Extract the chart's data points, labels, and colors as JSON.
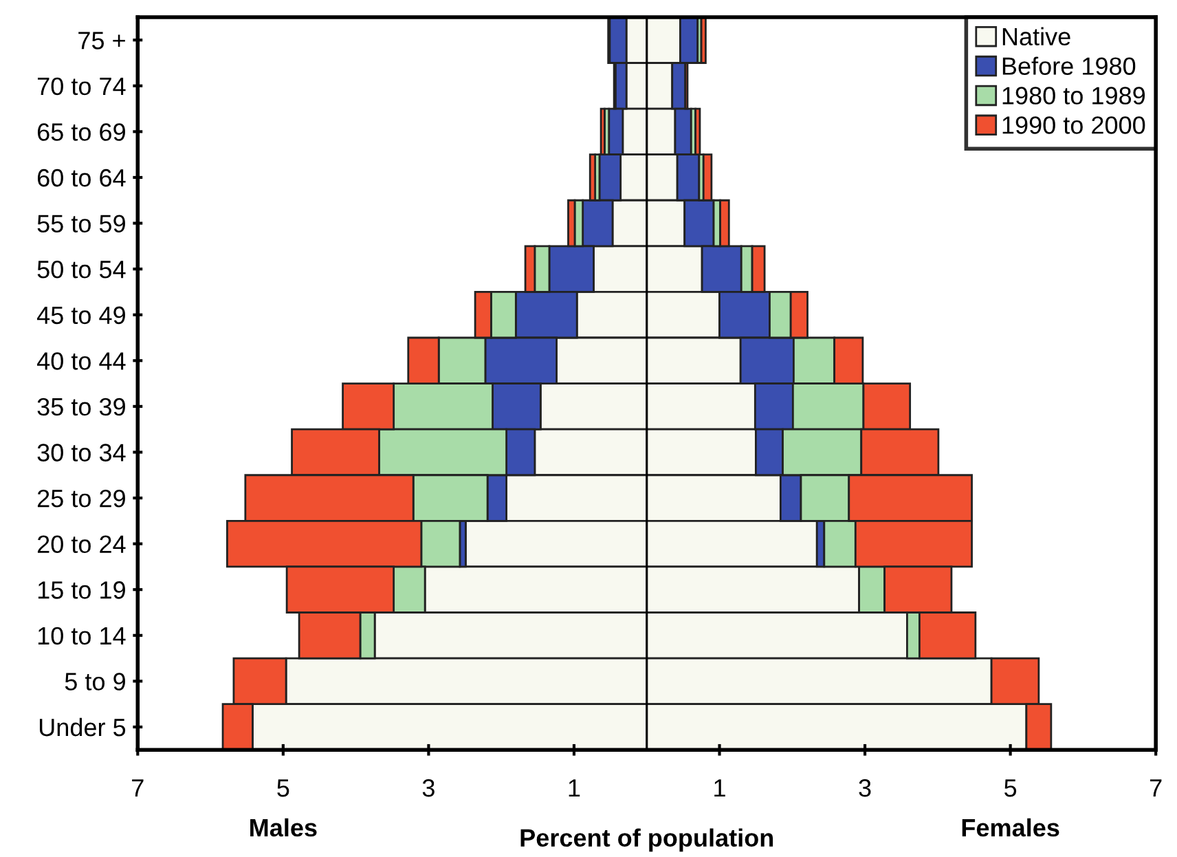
{
  "chart_data": {
    "type": "bar",
    "orientation": "horizontal",
    "stacked": true,
    "xlabel": "Percent of population",
    "annotations": [
      "Males",
      "Females"
    ],
    "categories": [
      "75 +",
      "70 to 74",
      "65 to 69",
      "60 to 64",
      "55 to 59",
      "50 to 54",
      "45 to 49",
      "40 to 44",
      "35 to 39",
      "30 to 34",
      "25 to 29",
      "20 to 24",
      "15 to 19",
      "10 to 14",
      "5 to 9",
      "Under 5"
    ],
    "series": [
      {
        "name": "Native",
        "color": "#f8f9f0",
        "values": [
          0.46,
          0.35,
          0.39,
          0.42,
          0.52,
          0.76,
          1.0,
          1.29,
          1.49,
          1.5,
          1.84,
          2.34,
          2.92,
          3.58,
          4.74,
          5.22
        ]
      },
      {
        "name": "Before 1980",
        "color": "#3a4fb0",
        "values": [
          0.24,
          0.18,
          0.22,
          0.3,
          0.4,
          0.54,
          0.69,
          0.73,
          0.52,
          0.37,
          0.28,
          0.1,
          0,
          0,
          0,
          0
        ]
      },
      {
        "name": "1980 to 1989",
        "color": "#a8dca8",
        "values": [
          0.05,
          null,
          0.06,
          0.06,
          0.09,
          0.15,
          0.29,
          0.56,
          0.97,
          1.08,
          0.66,
          0.43,
          0.35,
          0.17,
          0,
          0
        ]
      },
      {
        "name": "1990 to 2000",
        "color": "#f05030",
        "values": [
          0.06,
          0.03,
          0.06,
          0.11,
          0.12,
          0.17,
          0.23,
          0.39,
          0.64,
          1.06,
          1.69,
          1.6,
          0.92,
          0.77,
          0.65,
          0.34
        ]
      },
      {
        "color": "#f8f9f0",
        "values": [
          -0.28,
          -0.28,
          -0.33,
          -0.36,
          -0.47,
          -0.73,
          -0.96,
          -1.24,
          -1.46,
          -1.54,
          -1.93,
          -2.49,
          -3.05,
          -3.74,
          -4.96,
          -5.42
        ]
      },
      {
        "color": "#3a4fb0",
        "values": [
          -0.23,
          -0.15,
          -0.19,
          -0.29,
          -0.41,
          -0.61,
          -0.84,
          -0.98,
          -0.66,
          -0.39,
          -0.26,
          -0.08,
          0,
          0,
          0,
          0
        ]
      },
      {
        "color": "#a8dca8",
        "values": [
          null,
          null,
          -0.06,
          -0.06,
          -0.11,
          -0.2,
          -0.34,
          -0.64,
          -1.36,
          -1.75,
          -1.02,
          -0.53,
          -0.43,
          -0.2,
          0,
          0
        ]
      },
      {
        "color": "#f05030",
        "values": [
          -0.02,
          -0.02,
          -0.05,
          -0.07,
          -0.09,
          -0.13,
          -0.22,
          -0.42,
          -0.7,
          -1.2,
          -2.31,
          -2.67,
          -1.47,
          -0.84,
          -0.72,
          -0.41
        ]
      }
    ],
    "xlim": [
      -7,
      7
    ],
    "xticks": [
      {
        "value": -7,
        "label": "7"
      },
      {
        "value": -5,
        "label": "5"
      },
      {
        "value": -3,
        "label": "3"
      },
      {
        "value": -1,
        "label": "1"
      },
      1,
      3,
      5,
      7
    ],
    "ref_lines": [
      {
        "axis": "x",
        "value": 0,
        "color": "#000000"
      }
    ],
    "legend": "top right"
  }
}
